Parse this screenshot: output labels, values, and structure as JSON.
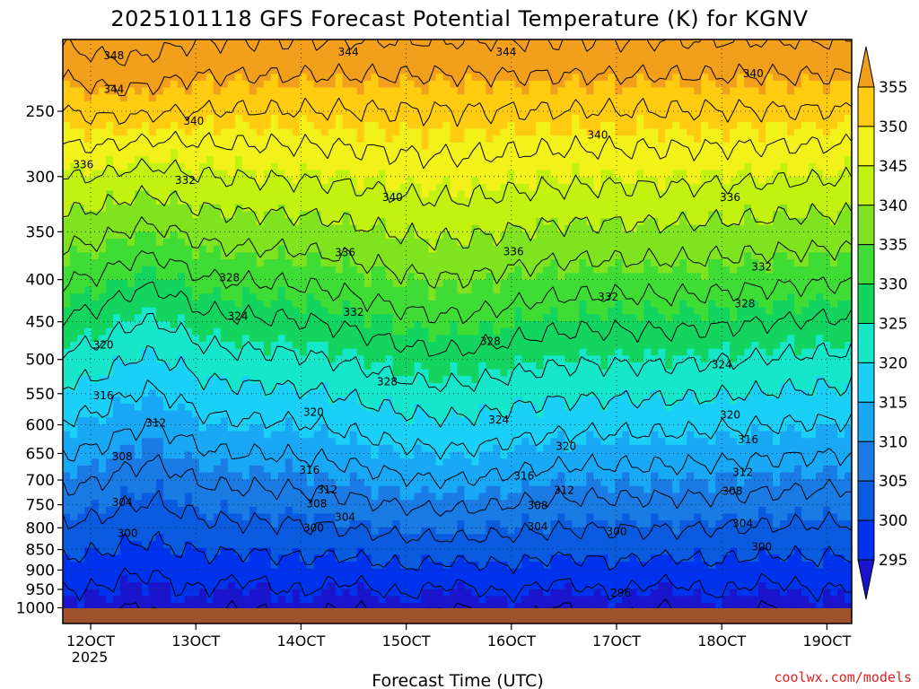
{
  "chart_data": {
    "type": "heatmap",
    "title": "2025101118 GFS Forecast Potential Temperature (K) for KGNV",
    "xlabel": "Forecast Time (UTC)",
    "ylabel": "",
    "credit": "coolwx.com/models",
    "x_start_year": "2025",
    "x_ticks": [
      "12OCT",
      "13OCT",
      "14OCT",
      "15OCT",
      "16OCT",
      "17OCT",
      "18OCT",
      "19OCT"
    ],
    "x_range_days": [
      11.75,
      19.25
    ],
    "y_ticks": [
      250,
      300,
      350,
      400,
      450,
      500,
      550,
      600,
      650,
      700,
      750,
      800,
      850,
      900,
      950,
      1000
    ],
    "y_range_hpa": [
      200,
      1013
    ],
    "y_scale": "log-pressure (inverted)",
    "grid": "dotted",
    "colorbar": {
      "levels": [
        295,
        300,
        305,
        310,
        315,
        320,
        325,
        330,
        335,
        340,
        345,
        350,
        355
      ],
      "colors": [
        "#1a14cc",
        "#0033ee",
        "#0b5be0",
        "#1a7be4",
        "#19a8f5",
        "#1bd0f6",
        "#16e6c9",
        "#12d45e",
        "#3fdc36",
        "#7fe31f",
        "#c3f110",
        "#f2f21a",
        "#ffcc11",
        "#f2a01c"
      ]
    },
    "surface_color": "#a0522d",
    "contour_interval": 4,
    "contour_labels": [
      {
        "label": "348",
        "x": 12.22,
        "p": 214
      },
      {
        "label": "344",
        "x": 12.22,
        "p": 235
      },
      {
        "label": "344",
        "x": 14.45,
        "p": 212
      },
      {
        "label": "344",
        "x": 15.95,
        "p": 212
      },
      {
        "label": "340",
        "x": 12.98,
        "p": 257
      },
      {
        "label": "340",
        "x": 16.82,
        "p": 267
      },
      {
        "label": "340",
        "x": 18.3,
        "p": 225
      },
      {
        "label": "340",
        "x": 14.87,
        "p": 318
      },
      {
        "label": "336",
        "x": 11.93,
        "p": 290
      },
      {
        "label": "336",
        "x": 14.42,
        "p": 371
      },
      {
        "label": "336",
        "x": 16.02,
        "p": 370
      },
      {
        "label": "336",
        "x": 18.08,
        "p": 318
      },
      {
        "label": "332",
        "x": 12.9,
        "p": 303
      },
      {
        "label": "332",
        "x": 14.5,
        "p": 438
      },
      {
        "label": "332",
        "x": 16.92,
        "p": 420
      },
      {
        "label": "332",
        "x": 18.38,
        "p": 386
      },
      {
        "label": "328",
        "x": 13.32,
        "p": 398
      },
      {
        "label": "328",
        "x": 15.8,
        "p": 475
      },
      {
        "label": "328",
        "x": 18.22,
        "p": 428
      },
      {
        "label": "328",
        "x": 14.82,
        "p": 532
      },
      {
        "label": "324",
        "x": 13.4,
        "p": 443
      },
      {
        "label": "324",
        "x": 18.0,
        "p": 507
      },
      {
        "label": "324",
        "x": 15.88,
        "p": 592
      },
      {
        "label": "320",
        "x": 12.12,
        "p": 480
      },
      {
        "label": "320",
        "x": 14.12,
        "p": 579
      },
      {
        "label": "320",
        "x": 16.52,
        "p": 637
      },
      {
        "label": "320",
        "x": 18.08,
        "p": 584
      },
      {
        "label": "316",
        "x": 12.12,
        "p": 553
      },
      {
        "label": "316",
        "x": 14.08,
        "p": 681
      },
      {
        "label": "316",
        "x": 16.12,
        "p": 692
      },
      {
        "label": "316",
        "x": 18.25,
        "p": 625
      },
      {
        "label": "312",
        "x": 12.62,
        "p": 597
      },
      {
        "label": "312",
        "x": 14.25,
        "p": 719
      },
      {
        "label": "312",
        "x": 16.5,
        "p": 720
      },
      {
        "label": "312",
        "x": 18.2,
        "p": 685
      },
      {
        "label": "308",
        "x": 12.3,
        "p": 656
      },
      {
        "label": "308",
        "x": 14.15,
        "p": 748
      },
      {
        "label": "308",
        "x": 16.25,
        "p": 752
      },
      {
        "label": "308",
        "x": 18.1,
        "p": 722
      },
      {
        "label": "304",
        "x": 12.3,
        "p": 745
      },
      {
        "label": "304",
        "x": 14.42,
        "p": 777
      },
      {
        "label": "304",
        "x": 16.25,
        "p": 797
      },
      {
        "label": "304",
        "x": 18.2,
        "p": 790
      },
      {
        "label": "300",
        "x": 12.35,
        "p": 812
      },
      {
        "label": "300",
        "x": 14.12,
        "p": 800
      },
      {
        "label": "300",
        "x": 17.0,
        "p": 808
      },
      {
        "label": "300",
        "x": 18.38,
        "p": 843
      },
      {
        "label": "296",
        "x": 17.04,
        "p": 960
      }
    ]
  }
}
